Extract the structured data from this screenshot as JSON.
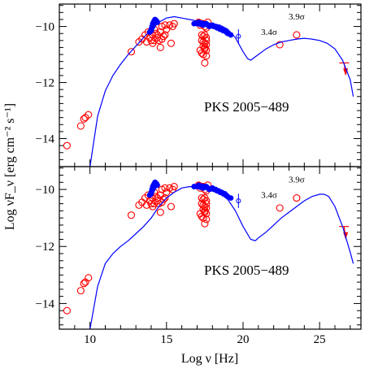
{
  "figure": {
    "xlabel": "Log ν [Hz]",
    "ylabel": "Log νF_ν [erg cm⁻² s⁻¹]"
  },
  "chart_data": [
    {
      "type": "scatter",
      "panel": "top",
      "xlim": [
        8,
        27.7
      ],
      "ylim": [
        -15,
        -9.2
      ],
      "xticks": [
        10,
        15,
        20,
        25
      ],
      "yticks": [
        -14,
        -12,
        -10
      ],
      "source_label": "PKS 2005−489",
      "annotations": [
        {
          "text": "3.9σ",
          "x": 23.5,
          "y": -9.75
        },
        {
          "text": "3.4σ",
          "x": 21.7,
          "y": -10.3
        }
      ],
      "series": [
        {
          "marker": "open-circle",
          "color": "#ff0000",
          "x": [
            8.5,
            9.4,
            9.6,
            9.7,
            9.9,
            12.7,
            13.2,
            13.4,
            13.6,
            13.8,
            13.9,
            14.0,
            14.1,
            14.2,
            14.3,
            14.4,
            14.5,
            14.6,
            14.7,
            14.8,
            14.9,
            15.0,
            15.2,
            15.4,
            15.5,
            13.7,
            14.1,
            14.2,
            14.4,
            14.6,
            14.7,
            14.9,
            15.3,
            17.1,
            17.2,
            17.3,
            17.4,
            17.5,
            17.6,
            17.7,
            17.2,
            17.3,
            17.5,
            17.6,
            17.4,
            17.5,
            17.6,
            17.3,
            17.4,
            17.5,
            17.6,
            17.3,
            17.4,
            17.5,
            17.6,
            17.4,
            17.5,
            17.6,
            22.4,
            23.5
          ],
          "y": [
            -14.25,
            -13.55,
            -13.3,
            -13.25,
            -13.15,
            -10.9,
            -10.55,
            -10.45,
            -10.3,
            -10.2,
            -10.4,
            -10.5,
            -10.3,
            -10.1,
            -10.25,
            -10.4,
            -10.5,
            -10.2,
            -10.0,
            -10.35,
            -9.95,
            -10.1,
            -9.95,
            -10.0,
            -9.9,
            -10.55,
            -10.6,
            -10.5,
            -10.3,
            -10.75,
            -10.45,
            -10.3,
            -10.6,
            -9.85,
            -9.95,
            -9.9,
            -9.9,
            -10.0,
            -10.05,
            -9.85,
            -10.85,
            -10.95,
            -10.8,
            -10.85,
            -11.0,
            -11.3,
            -11.05,
            -10.3,
            -10.35,
            -10.3,
            -10.4,
            -10.5,
            -10.55,
            -10.6,
            -10.5,
            -10.7,
            -10.75,
            -10.65,
            -10.65,
            -10.3
          ]
        },
        {
          "marker": "filled-circle",
          "color": "#0000ff",
          "x": [
            13.9,
            14.0,
            14.05,
            14.1,
            14.15,
            14.2,
            14.25,
            14.3,
            14.35,
            14.4,
            14.0,
            14.1,
            14.2,
            14.3,
            14.05,
            14.15,
            14.25,
            16.8,
            17.0,
            17.2,
            17.4,
            17.6,
            17.8,
            18.0,
            18.2,
            18.4,
            18.6,
            18.8,
            19.0,
            17.1,
            17.3,
            17.5,
            17.7,
            17.9,
            18.1,
            18.3,
            18.5,
            18.7,
            18.9,
            19.2
          ],
          "y": [
            -10.2,
            -10.1,
            -10.0,
            -9.9,
            -9.85,
            -9.8,
            -9.75,
            -9.78,
            -9.8,
            -9.85,
            -10.15,
            -10.0,
            -9.9,
            -9.82,
            -10.05,
            -9.95,
            -9.85,
            -9.9,
            -9.9,
            -9.92,
            -9.95,
            -9.9,
            -10.0,
            -9.95,
            -10.0,
            -10.05,
            -10.1,
            -10.15,
            -10.25,
            -9.85,
            -9.88,
            -9.9,
            -9.95,
            -9.98,
            -10.0,
            -10.05,
            -10.1,
            -10.15,
            -10.2,
            -10.3
          ]
        },
        {
          "marker": "errorbar",
          "color": "#0000ff",
          "x": [
            19.7
          ],
          "y": [
            -10.35
          ],
          "yerr": [
            0.25
          ]
        },
        {
          "marker": "upper-limit",
          "color": "#ff0000",
          "x": [
            26.6,
            26.7
          ],
          "y": [
            -11.3,
            -11.7
          ]
        },
        {
          "marker": "line",
          "color": "#0000ff",
          "x": [
            10.0,
            10.5,
            11.0,
            11.5,
            12.0,
            12.5,
            13.0,
            13.5,
            14.0,
            14.5,
            15.0,
            15.5,
            16.0,
            16.5,
            17.0,
            17.5,
            18.0,
            18.5,
            19.0,
            19.5,
            20.0,
            20.3,
            20.5,
            21.0,
            21.5,
            22.0,
            22.5,
            23.0,
            23.5,
            24.0,
            24.5,
            25.0,
            25.5,
            26.0,
            26.5,
            27.0,
            27.2
          ],
          "y": [
            -15.0,
            -13.2,
            -12.3,
            -11.75,
            -11.35,
            -11.0,
            -10.7,
            -10.4,
            -10.1,
            -9.85,
            -9.7,
            -9.65,
            -9.7,
            -9.75,
            -9.8,
            -9.85,
            -9.9,
            -9.95,
            -10.1,
            -10.4,
            -10.9,
            -11.15,
            -11.2,
            -11.0,
            -10.8,
            -10.65,
            -10.55,
            -10.5,
            -10.45,
            -10.42,
            -10.45,
            -10.5,
            -10.6,
            -10.8,
            -11.2,
            -11.9,
            -12.5
          ]
        }
      ]
    },
    {
      "type": "scatter",
      "panel": "bottom",
      "xlim": [
        8,
        27.7
      ],
      "ylim": [
        -14.9,
        -9.2
      ],
      "xticks": [
        10,
        15,
        20,
        25
      ],
      "yticks": [
        -14,
        -12,
        -10
      ],
      "source_label": "PKS 2005−489",
      "annotations": [
        {
          "text": "3.9σ",
          "x": 23.5,
          "y": -9.75
        },
        {
          "text": "3.4σ",
          "x": 21.7,
          "y": -10.3
        }
      ],
      "series": [
        {
          "marker": "open-circle",
          "color": "#ff0000",
          "x": [
            8.5,
            9.4,
            9.6,
            9.7,
            9.9,
            12.7,
            13.2,
            13.4,
            13.6,
            13.8,
            13.9,
            14.0,
            14.1,
            14.2,
            14.3,
            14.4,
            14.5,
            14.6,
            14.7,
            14.8,
            14.9,
            15.0,
            15.2,
            15.4,
            15.5,
            13.7,
            14.1,
            14.2,
            14.4,
            14.6,
            14.7,
            14.9,
            15.3,
            17.1,
            17.2,
            17.3,
            17.4,
            17.5,
            17.6,
            17.7,
            17.2,
            17.3,
            17.5,
            17.6,
            17.4,
            17.5,
            17.6,
            17.3,
            17.4,
            17.5,
            17.6,
            17.3,
            17.4,
            17.5,
            17.6,
            17.4,
            17.5,
            17.6,
            22.4,
            23.5
          ],
          "y": [
            -14.25,
            -13.55,
            -13.3,
            -13.25,
            -13.1,
            -10.9,
            -10.55,
            -10.45,
            -10.3,
            -10.2,
            -10.4,
            -10.5,
            -10.3,
            -10.1,
            -10.25,
            -10.4,
            -10.5,
            -10.2,
            -10.0,
            -10.35,
            -9.95,
            -10.1,
            -9.95,
            -10.0,
            -9.9,
            -10.55,
            -10.6,
            -10.5,
            -10.3,
            -10.8,
            -10.45,
            -10.3,
            -10.6,
            -9.85,
            -9.95,
            -9.9,
            -9.9,
            -10.0,
            -10.05,
            -9.85,
            -10.85,
            -10.95,
            -10.8,
            -10.85,
            -11.0,
            -11.2,
            -11.05,
            -10.3,
            -10.35,
            -10.3,
            -10.4,
            -10.5,
            -10.55,
            -10.6,
            -10.5,
            -10.7,
            -10.75,
            -10.65,
            -10.65,
            -10.3
          ]
        },
        {
          "marker": "filled-circle",
          "color": "#0000ff",
          "x": [
            13.9,
            14.0,
            14.05,
            14.1,
            14.15,
            14.2,
            14.25,
            14.3,
            14.35,
            14.4,
            14.0,
            14.1,
            14.2,
            14.3,
            14.05,
            14.15,
            14.25,
            16.8,
            17.0,
            17.2,
            17.4,
            17.6,
            17.8,
            18.0,
            18.2,
            18.4,
            18.6,
            18.8,
            19.0,
            17.1,
            17.3,
            17.5,
            17.7,
            17.9,
            18.1,
            18.3,
            18.5,
            18.7,
            18.9,
            19.2
          ],
          "y": [
            -10.2,
            -10.1,
            -10.0,
            -9.9,
            -9.85,
            -9.8,
            -9.75,
            -9.78,
            -9.8,
            -9.85,
            -10.15,
            -10.0,
            -9.9,
            -9.82,
            -10.05,
            -9.95,
            -9.85,
            -9.9,
            -9.9,
            -9.92,
            -9.95,
            -9.9,
            -10.0,
            -9.95,
            -10.0,
            -10.05,
            -10.1,
            -10.15,
            -10.25,
            -9.85,
            -9.88,
            -9.9,
            -9.95,
            -9.98,
            -10.0,
            -10.05,
            -10.1,
            -10.15,
            -10.2,
            -10.3
          ]
        },
        {
          "marker": "errorbar",
          "color": "#0000ff",
          "x": [
            19.7
          ],
          "y": [
            -10.4
          ],
          "yerr": [
            0.25
          ]
        },
        {
          "marker": "upper-limit",
          "color": "#ff0000",
          "x": [
            26.6,
            26.7
          ],
          "y": [
            -11.3,
            -11.7
          ]
        },
        {
          "marker": "line",
          "color": "#0000ff",
          "x": [
            10.0,
            10.5,
            11.0,
            11.5,
            12.0,
            12.5,
            13.0,
            13.5,
            14.0,
            14.5,
            15.0,
            15.5,
            16.0,
            16.5,
            17.0,
            17.5,
            18.0,
            18.5,
            19.0,
            19.5,
            20.0,
            20.5,
            20.8,
            21.0,
            21.5,
            22.0,
            22.5,
            23.0,
            23.5,
            24.0,
            24.5,
            25.0,
            25.3,
            25.6,
            26.0,
            26.5,
            27.0,
            27.2
          ],
          "y": [
            -14.9,
            -13.4,
            -12.6,
            -12.25,
            -12.0,
            -11.8,
            -11.55,
            -11.3,
            -11.0,
            -10.6,
            -10.3,
            -10.1,
            -9.95,
            -9.9,
            -9.9,
            -9.95,
            -10.0,
            -10.15,
            -10.35,
            -10.75,
            -11.3,
            -11.75,
            -11.8,
            -11.7,
            -11.5,
            -11.25,
            -11.0,
            -10.8,
            -10.6,
            -10.4,
            -10.25,
            -10.17,
            -10.17,
            -10.25,
            -10.6,
            -11.3,
            -12.2,
            -12.6
          ]
        }
      ]
    }
  ]
}
